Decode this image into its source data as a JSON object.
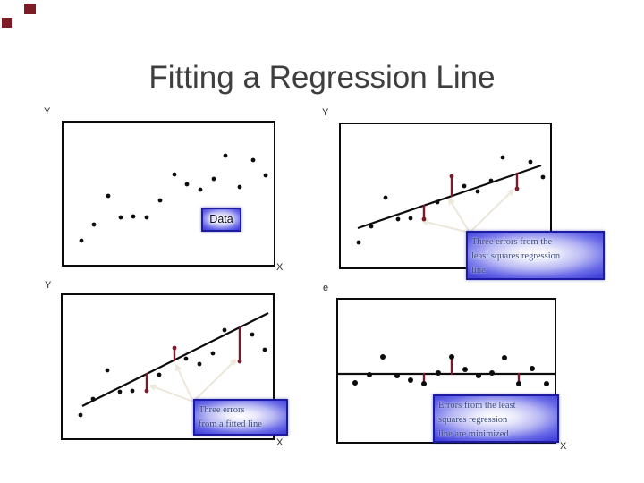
{
  "slide": {
    "title": "Fitting a Regression Line"
  },
  "colors": {
    "title_text": "#3e3e3e",
    "panel_border": "#0b0b0b",
    "point_black": "#0d0d0d",
    "regression_line": "#0c0c0c",
    "error_bar_maroon": "#7a1b2b",
    "callout_arrow_cream": "#ece7da",
    "label_box_border_navy": "#1c1ca2",
    "label_box_fill_blue": "#4444dd",
    "label_box_text_navy": "#3b4a80",
    "decor_square_maroon": "#7e1c26"
  },
  "axis_labels": {
    "data_panel_y": "Y",
    "data_panel_x": "X",
    "regression_panel_y": "Y",
    "fitted_panel_y": "Y",
    "fitted_panel_x": "X",
    "residuals_panel_y": "e",
    "residuals_panel_x": "X"
  },
  "callouts": {
    "data_box": {
      "text": "Data",
      "lines": [
        "Data"
      ]
    },
    "regression_box": {
      "text": "Three errors from the least squares regression line",
      "lines": [
        "Three errors from the",
        "least squares regression",
        "line"
      ]
    },
    "fitted_box": {
      "text": "Three errors from a fitted line",
      "lines": [
        "Three errors",
        "from a fitted line"
      ]
    },
    "residuals_box": {
      "text": "Errors from the least squares regression line are minimized",
      "lines": [
        "Errors from the least",
        "squares regression",
        "line are minimized"
      ]
    }
  },
  "chart_data": [
    {
      "id": "data-plot",
      "type": "scatter",
      "title": "Data",
      "xlabel": "X",
      "ylabel": "Y",
      "axis_ticks": "none (conceptual plot, units are panel pixels, y increases downward)",
      "point_r": 2.4,
      "points": [
        [
          20,
          132
        ],
        [
          34,
          114
        ],
        [
          50,
          82
        ],
        [
          64,
          106
        ],
        [
          78,
          105
        ],
        [
          93,
          106
        ],
        [
          108,
          87
        ],
        [
          124,
          58
        ],
        [
          138,
          69
        ],
        [
          153,
          75
        ],
        [
          168,
          63
        ],
        [
          181,
          37
        ],
        [
          197,
          72
        ],
        [
          212,
          42
        ],
        [
          226,
          59
        ]
      ]
    },
    {
      "id": "regression-plot",
      "type": "scatter",
      "title": "Three errors from the least squares regression line",
      "ylabel": "Y",
      "axis_ticks": "none (conceptual plot, units are panel pixels, y increases downward)",
      "point_r": 2.4,
      "points": [
        [
          20,
          132
        ],
        [
          34,
          114
        ],
        [
          50,
          82
        ],
        [
          64,
          106
        ],
        [
          78,
          105
        ],
        [
          93,
          106
        ],
        [
          108,
          87
        ],
        [
          124,
          58
        ],
        [
          138,
          69
        ],
        [
          153,
          75
        ],
        [
          168,
          63
        ],
        [
          181,
          37
        ],
        [
          197,
          72
        ],
        [
          212,
          42
        ],
        [
          226,
          59
        ]
      ],
      "error_point_indices": [
        5,
        7,
        12
      ],
      "line": [
        [
          19,
          116
        ],
        [
          224,
          46
        ]
      ],
      "error_bars": [
        [
          93,
          91,
          106
        ],
        [
          124,
          80,
          58
        ],
        [
          197,
          55,
          72
        ]
      ],
      "callout_arrows": {
        "from": [
          144,
          121
        ],
        "to": [
          [
            91,
            108
          ],
          [
            121,
            83
          ],
          [
            193,
            73
          ]
        ]
      }
    },
    {
      "id": "fitted-plot",
      "type": "scatter",
      "title": "Three errors from a fitted line",
      "xlabel": "X",
      "ylabel": "Y",
      "axis_ticks": "none (conceptual plot, units are panel pixels, y increases downward)",
      "point_r": 2.4,
      "points": [
        [
          20,
          134
        ],
        [
          34,
          116
        ],
        [
          50,
          84
        ],
        [
          64,
          108
        ],
        [
          78,
          107
        ],
        [
          94,
          107
        ],
        [
          108,
          89
        ],
        [
          125,
          59
        ],
        [
          138,
          71
        ],
        [
          153,
          77
        ],
        [
          168,
          65
        ],
        [
          181,
          39
        ],
        [
          198,
          74
        ],
        [
          212,
          44
        ],
        [
          226,
          61
        ]
      ],
      "error_point_indices": [
        5,
        7,
        12
      ],
      "line": [
        [
          22,
          124
        ],
        [
          230,
          20
        ]
      ],
      "error_bars": [
        [
          94,
          88,
          107
        ],
        [
          125,
          73,
          59
        ],
        [
          198,
          36,
          74
        ]
      ],
      "callout_arrows": {
        "from": [
          146,
          119
        ],
        "to": [
          [
            98,
            101
          ],
          [
            127,
            78
          ],
          [
            194,
            72
          ]
        ]
      }
    },
    {
      "id": "residuals-plot",
      "type": "scatter",
      "title": "Errors from the least squares regression line are minimized",
      "xlabel": "X",
      "ylabel": "e",
      "axis_ticks": "none (residual plot, units are panel pixels, y increases downward; zero-error line at y=83)",
      "point_r": 3,
      "points": [
        [
          19,
          93
        ],
        [
          35,
          84
        ],
        [
          50,
          64
        ],
        [
          66,
          85
        ],
        [
          81,
          90
        ],
        [
          96,
          94
        ],
        [
          112,
          82
        ],
        [
          127,
          64
        ],
        [
          142,
          78
        ],
        [
          157,
          85
        ],
        [
          172,
          82
        ],
        [
          186,
          65
        ],
        [
          202,
          94
        ],
        [
          217,
          77
        ],
        [
          233,
          94
        ]
      ],
      "line": [
        [
          0,
          83
        ],
        [
          242,
          83
        ]
      ],
      "error_bars": [
        [
          96,
          83,
          94
        ],
        [
          127,
          83,
          64
        ],
        [
          202,
          83,
          94
        ]
      ]
    }
  ]
}
